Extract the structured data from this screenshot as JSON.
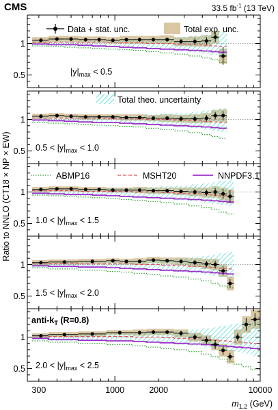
{
  "header": {
    "experiment": "CMS",
    "lumi_prefix": "33.5 fb",
    "lumi_exp": "-1",
    "lumi_suffix": " (13 TeV)"
  },
  "ylabel": "Ratio to NNLO (CT18 × NP × EW)",
  "xlabel_main": "m",
  "xlabel_sub": "1,2",
  "xlabel_unit": " (GeV)",
  "legend": {
    "data": "Data + stat. unc.",
    "exp": "Total exp. unc.",
    "theo": "Total theo. uncertainty",
    "abmp": "ABMP16",
    "msht": "MSHT20",
    "nnpdf": "NNPDF3.1"
  },
  "algo": {
    "main": "anti-k",
    "sub": "T",
    "rest": " (R=0.8)"
  },
  "colors": {
    "data": "#000000",
    "exp_band": "#d9c7a3",
    "theo_band": "#1fd3c9",
    "abmp": "#2ca02c",
    "msht": "#e0505a",
    "nnpdf": "#9b30c8",
    "reference": "#888888"
  },
  "chart_data": {
    "type": "line",
    "xscale": "log",
    "xlim": [
      250,
      10000
    ],
    "ylim": [
      0.3,
      1.45
    ],
    "xticks": [
      300,
      1000,
      2000,
      10000
    ],
    "yticks": [
      0.5,
      1
    ],
    "panels": [
      {
        "label": "|y|max < 0.5",
        "label_parts": [
          "|y|",
          "max",
          " < 0.5"
        ],
        "x_edges": [
          270,
          350,
          450,
          560,
          700,
          870,
          1080,
          1330,
          1650,
          2050,
          2550,
          3200,
          3950,
          4600,
          5200,
          5900
        ],
        "data": [
          [
            310,
            1.05,
            0.03
          ],
          [
            400,
            1.07,
            0.03
          ],
          [
            500,
            1.07,
            0.03
          ],
          [
            630,
            1.06,
            0.03
          ],
          [
            780,
            1.06,
            0.03
          ],
          [
            970,
            1.05,
            0.03
          ],
          [
            1200,
            1.06,
            0.03
          ],
          [
            1480,
            1.06,
            0.03
          ],
          [
            1840,
            1.06,
            0.03
          ],
          [
            2290,
            1.06,
            0.03
          ],
          [
            2850,
            1.03,
            0.04
          ],
          [
            3550,
            1.03,
            0.05
          ],
          [
            4270,
            1.04,
            0.06
          ],
          [
            4900,
            1.1,
            0.08
          ],
          [
            5550,
            0.8,
            0.14
          ]
        ],
        "exp_rel": [
          0.05,
          0.05,
          0.05,
          0.05,
          0.05,
          0.05,
          0.06,
          0.06,
          0.06,
          0.07,
          0.07,
          0.08,
          0.09,
          0.1,
          0.12
        ],
        "theo_lo": [
          0.96,
          0.96,
          0.95,
          0.95,
          0.94,
          0.94,
          0.93,
          0.92,
          0.91,
          0.9,
          0.88,
          0.86,
          0.84,
          0.82,
          0.8
        ],
        "theo_hi": [
          1.04,
          1.04,
          1.04,
          1.05,
          1.05,
          1.06,
          1.06,
          1.07,
          1.08,
          1.09,
          1.1,
          1.12,
          1.14,
          1.16,
          1.18
        ],
        "abmp": [
          0.96,
          0.95,
          0.94,
          0.93,
          0.92,
          0.91,
          0.9,
          0.89,
          0.87,
          0.85,
          0.83,
          0.8,
          0.77,
          0.74,
          0.7
        ],
        "msht": [
          1.02,
          1.02,
          1.02,
          1.02,
          1.02,
          1.02,
          1.01,
          1.01,
          1.0,
          1.0,
          0.99,
          0.98,
          0.97,
          0.96,
          0.95
        ],
        "nnpdf": [
          0.99,
          0.98,
          0.98,
          0.97,
          0.96,
          0.95,
          0.94,
          0.93,
          0.92,
          0.91,
          0.9,
          0.89,
          0.88,
          0.87,
          0.86
        ]
      },
      {
        "label": "0.5 < |y|max < 1.0",
        "label_parts": [
          "0.5 < |y|",
          "max",
          " < 1.0"
        ],
        "x_edges": [
          270,
          350,
          450,
          560,
          700,
          870,
          1080,
          1330,
          1650,
          2050,
          2550,
          3200,
          3950,
          4600,
          5200,
          5900
        ],
        "data": [
          [
            310,
            1.05,
            0.03
          ],
          [
            400,
            1.06,
            0.03
          ],
          [
            500,
            1.05,
            0.03
          ],
          [
            630,
            1.04,
            0.03
          ],
          [
            780,
            1.04,
            0.03
          ],
          [
            970,
            1.04,
            0.03
          ],
          [
            1200,
            1.03,
            0.03
          ],
          [
            1480,
            1.03,
            0.03
          ],
          [
            1840,
            1.02,
            0.03
          ],
          [
            2290,
            1.02,
            0.03
          ],
          [
            2850,
            1.01,
            0.04
          ],
          [
            3550,
            1.01,
            0.05
          ],
          [
            4270,
            1.02,
            0.05
          ],
          [
            4900,
            1.06,
            0.06
          ],
          [
            5550,
            1.06,
            0.07
          ]
        ],
        "exp_rel": [
          0.04,
          0.04,
          0.04,
          0.04,
          0.04,
          0.04,
          0.05,
          0.05,
          0.05,
          0.06,
          0.06,
          0.07,
          0.08,
          0.09,
          0.1
        ],
        "theo_lo": [
          0.96,
          0.96,
          0.95,
          0.95,
          0.94,
          0.94,
          0.93,
          0.92,
          0.91,
          0.9,
          0.88,
          0.86,
          0.84,
          0.82,
          0.8
        ],
        "theo_hi": [
          1.04,
          1.04,
          1.04,
          1.05,
          1.05,
          1.06,
          1.06,
          1.07,
          1.08,
          1.09,
          1.1,
          1.12,
          1.14,
          1.16,
          1.18
        ],
        "abmp": [
          0.95,
          0.94,
          0.93,
          0.92,
          0.91,
          0.9,
          0.89,
          0.88,
          0.86,
          0.84,
          0.82,
          0.79,
          0.76,
          0.73,
          0.7
        ],
        "msht": [
          1.02,
          1.02,
          1.02,
          1.02,
          1.02,
          1.01,
          1.01,
          1.01,
          1.0,
          1.0,
          0.99,
          0.98,
          0.97,
          0.96,
          0.95
        ],
        "nnpdf": [
          0.99,
          0.98,
          0.97,
          0.96,
          0.95,
          0.95,
          0.94,
          0.93,
          0.92,
          0.91,
          0.9,
          0.89,
          0.88,
          0.87,
          0.86
        ]
      },
      {
        "label": "1.0 < |y|max < 1.5",
        "label_parts": [
          "1.0 < |y|",
          "max",
          " < 1.5"
        ],
        "x_edges": [
          270,
          350,
          450,
          560,
          700,
          870,
          1080,
          1330,
          1650,
          2050,
          2550,
          3200,
          3950,
          4600,
          5200,
          5900,
          6600
        ],
        "data": [
          [
            310,
            1.04,
            0.02
          ],
          [
            400,
            1.05,
            0.02
          ],
          [
            500,
            1.05,
            0.02
          ],
          [
            630,
            1.04,
            0.02
          ],
          [
            780,
            1.04,
            0.02
          ],
          [
            970,
            1.03,
            0.02
          ],
          [
            1200,
            1.03,
            0.02
          ],
          [
            1480,
            1.03,
            0.02
          ],
          [
            1840,
            1.02,
            0.03
          ],
          [
            2290,
            1.02,
            0.03
          ],
          [
            2850,
            1.01,
            0.03
          ],
          [
            3550,
            1.0,
            0.04
          ],
          [
            4270,
            0.99,
            0.05
          ],
          [
            4900,
            1.0,
            0.06
          ],
          [
            5550,
            0.97,
            0.08
          ],
          [
            6200,
            0.93,
            0.1
          ]
        ],
        "exp_rel": [
          0.04,
          0.04,
          0.04,
          0.04,
          0.04,
          0.04,
          0.04,
          0.05,
          0.05,
          0.05,
          0.06,
          0.07,
          0.08,
          0.09,
          0.1,
          0.11
        ],
        "theo_lo": [
          0.95,
          0.95,
          0.94,
          0.94,
          0.93,
          0.93,
          0.92,
          0.91,
          0.9,
          0.89,
          0.87,
          0.85,
          0.83,
          0.81,
          0.79,
          0.77
        ],
        "theo_hi": [
          1.04,
          1.04,
          1.04,
          1.05,
          1.05,
          1.06,
          1.06,
          1.07,
          1.08,
          1.09,
          1.1,
          1.12,
          1.14,
          1.16,
          1.18,
          1.2
        ],
        "abmp": [
          0.95,
          0.94,
          0.93,
          0.92,
          0.91,
          0.9,
          0.88,
          0.87,
          0.85,
          0.83,
          0.81,
          0.78,
          0.75,
          0.72,
          0.68,
          0.65
        ],
        "msht": [
          1.02,
          1.02,
          1.02,
          1.01,
          1.01,
          1.01,
          1.01,
          1.0,
          1.0,
          0.99,
          0.98,
          0.97,
          0.96,
          0.95,
          0.94,
          0.93
        ],
        "nnpdf": [
          0.98,
          0.97,
          0.96,
          0.96,
          0.95,
          0.94,
          0.93,
          0.92,
          0.91,
          0.9,
          0.89,
          0.88,
          0.87,
          0.86,
          0.85,
          0.84
        ]
      },
      {
        "label": "1.5 < |y|max < 2.0",
        "label_parts": [
          "1.5 < |y|",
          "max",
          " < 2.0"
        ],
        "x_edges": [
          270,
          350,
          560,
          870,
          1080,
          1330,
          1650,
          2050,
          2550,
          3200,
          3950,
          4600,
          5200,
          5900,
          6600
        ],
        "data": [
          [
            310,
            1.03,
            0.02
          ],
          [
            450,
            1.04,
            0.02
          ],
          [
            700,
            1.05,
            0.02
          ],
          [
            970,
            1.06,
            0.02
          ],
          [
            1200,
            1.05,
            0.02
          ],
          [
            1480,
            1.05,
            0.02
          ],
          [
            1840,
            1.07,
            0.03
          ],
          [
            2290,
            1.06,
            0.03
          ],
          [
            2850,
            1.05,
            0.03
          ],
          [
            3550,
            1.03,
            0.04
          ],
          [
            4270,
            1.01,
            0.05
          ],
          [
            4900,
            1.0,
            0.06
          ],
          [
            5550,
            0.9,
            0.07
          ],
          [
            6200,
            0.7,
            0.07
          ]
        ],
        "exp_rel": [
          0.04,
          0.04,
          0.04,
          0.04,
          0.04,
          0.05,
          0.05,
          0.05,
          0.06,
          0.07,
          0.08,
          0.09,
          0.1,
          0.11
        ],
        "theo_lo": [
          0.95,
          0.95,
          0.94,
          0.94,
          0.93,
          0.92,
          0.91,
          0.9,
          0.88,
          0.86,
          0.84,
          0.82,
          0.8,
          0.78
        ],
        "theo_hi": [
          1.04,
          1.04,
          1.05,
          1.06,
          1.06,
          1.07,
          1.08,
          1.09,
          1.1,
          1.12,
          1.14,
          1.16,
          1.18,
          1.2
        ],
        "abmp": [
          0.95,
          0.93,
          0.91,
          0.89,
          0.88,
          0.86,
          0.84,
          0.82,
          0.8,
          0.77,
          0.74,
          0.7,
          0.66,
          0.63
        ],
        "msht": [
          1.02,
          1.02,
          1.01,
          1.01,
          1.01,
          1.0,
          1.0,
          0.99,
          0.98,
          0.97,
          0.96,
          0.95,
          0.94,
          0.93
        ],
        "nnpdf": [
          0.98,
          0.97,
          0.96,
          0.95,
          0.94,
          0.93,
          0.92,
          0.91,
          0.9,
          0.89,
          0.88,
          0.87,
          0.86,
          0.85
        ]
      },
      {
        "label": "2.0 < |y|max < 2.5",
        "label_parts": [
          "2.0 < |y|",
          "max",
          " < 2.5"
        ],
        "x_edges": [
          270,
          350,
          560,
          870,
          1330,
          1650,
          2050,
          2550,
          3200,
          3950,
          4600,
          5200,
          5900,
          6600,
          7500,
          8600,
          10000
        ],
        "data": [
          [
            310,
            1.02,
            0.02
          ],
          [
            450,
            1.04,
            0.02
          ],
          [
            700,
            1.05,
            0.02
          ],
          [
            1080,
            1.07,
            0.02
          ],
          [
            1480,
            1.07,
            0.03
          ],
          [
            1840,
            1.08,
            0.03
          ],
          [
            2290,
            1.08,
            0.03
          ],
          [
            2850,
            1.06,
            0.04
          ],
          [
            3550,
            1.0,
            0.05
          ],
          [
            4270,
            0.95,
            0.06
          ],
          [
            4900,
            0.88,
            0.07
          ],
          [
            5550,
            0.79,
            0.07
          ],
          [
            6200,
            0.69,
            0.06
          ],
          [
            7000,
            1.0,
            0.06
          ],
          [
            8000,
            1.2,
            0.1
          ],
          [
            9200,
            1.28,
            0.1
          ]
        ],
        "exp_rel": [
          0.04,
          0.04,
          0.04,
          0.04,
          0.05,
          0.05,
          0.05,
          0.06,
          0.07,
          0.08,
          0.09,
          0.1,
          0.11,
          0.12,
          0.13,
          0.15
        ],
        "theo_lo": [
          0.95,
          0.94,
          0.94,
          0.93,
          0.92,
          0.91,
          0.9,
          0.88,
          0.86,
          0.84,
          0.82,
          0.8,
          0.78,
          0.76,
          0.73,
          0.7
        ],
        "theo_hi": [
          1.04,
          1.05,
          1.05,
          1.06,
          1.07,
          1.08,
          1.09,
          1.1,
          1.12,
          1.14,
          1.16,
          1.18,
          1.2,
          1.22,
          1.25,
          1.28
        ],
        "abmp": [
          0.94,
          0.92,
          0.9,
          0.88,
          0.86,
          0.84,
          0.82,
          0.8,
          0.77,
          0.73,
          0.69,
          0.65,
          0.61,
          0.57,
          0.53,
          0.48
        ],
        "msht": [
          1.02,
          1.01,
          1.01,
          1.01,
          1.0,
          1.0,
          0.99,
          0.98,
          0.97,
          0.96,
          0.95,
          0.94,
          0.93,
          0.92,
          0.91,
          0.9
        ],
        "nnpdf": [
          0.98,
          0.96,
          0.95,
          0.94,
          0.93,
          0.92,
          0.91,
          0.9,
          0.89,
          0.88,
          0.87,
          0.86,
          0.85,
          0.84,
          0.83,
          0.82
        ]
      }
    ]
  }
}
